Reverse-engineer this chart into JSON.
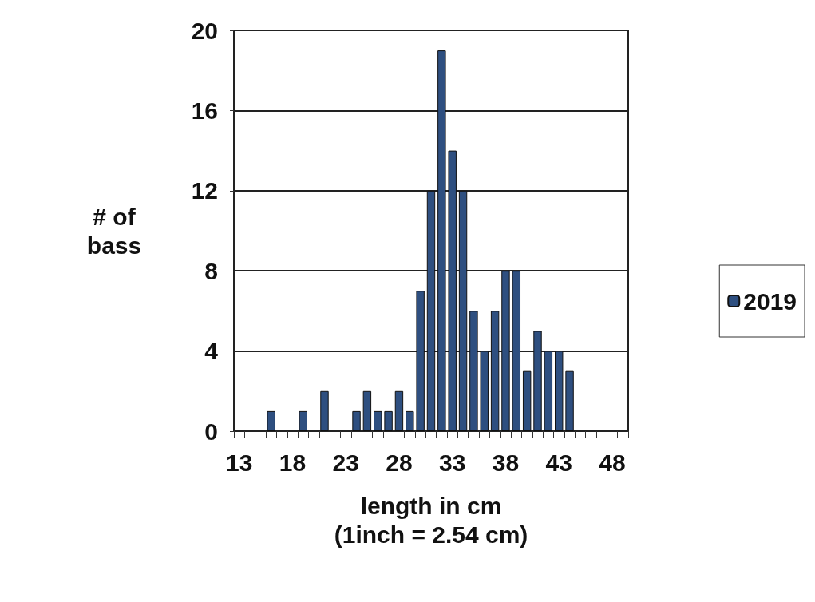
{
  "chart_data": {
    "type": "bar",
    "xlabel": "length in cm\n(1inch = 2.54 cm)",
    "ylabel": "# of\nbass",
    "categories": [
      "13",
      null,
      null,
      null,
      null,
      "18",
      null,
      null,
      null,
      null,
      "23",
      null,
      null,
      null,
      null,
      "28",
      null,
      null,
      null,
      null,
      "33",
      null,
      null,
      null,
      null,
      "38",
      null,
      null,
      null,
      null,
      "43",
      null,
      null,
      null,
      null,
      "48",
      null
    ],
    "series": [
      {
        "name": "2019",
        "color": "#2e4f80",
        "values": [
          0,
          0,
          0,
          1,
          0,
          0,
          1,
          0,
          2,
          0,
          0,
          1,
          2,
          1,
          1,
          2,
          1,
          7,
          12,
          19,
          14,
          12,
          6,
          4,
          6,
          8,
          8,
          3,
          5,
          4,
          4,
          3,
          0,
          0,
          0,
          0,
          0
        ]
      }
    ],
    "ylim": [
      0,
      20
    ],
    "yticks": [
      0,
      4,
      8,
      12,
      16,
      20
    ],
    "grid": "y",
    "legend": "right"
  }
}
